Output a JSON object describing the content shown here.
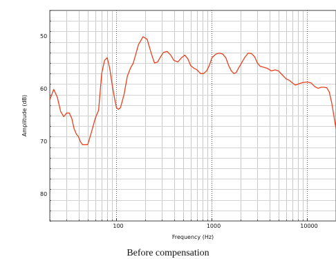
{
  "caption": "Before compensation",
  "chart_data": {
    "type": "line",
    "title": "",
    "xlabel": "Frequency (Hz)",
    "ylabel": "Amplitude (dB)",
    "x_scale": "log",
    "xlim": [
      20,
      20000
    ],
    "ylim": [
      85,
      45
    ],
    "y_inverted": true,
    "x_ticks": [
      100,
      1000,
      10000
    ],
    "x_tick_labels": [
      "100",
      "1000",
      "10000"
    ],
    "y_ticks": [
      50,
      60,
      70,
      80
    ],
    "y_tick_labels": [
      "50",
      "60",
      "70",
      "80"
    ],
    "grid": true,
    "legend": "none",
    "series": [
      {
        "color": "#e8401c",
        "x": [
          20,
          22,
          24,
          26,
          28,
          30,
          32,
          34,
          36,
          38,
          40,
          42,
          44,
          46,
          48,
          50,
          55,
          60,
          65,
          70,
          75,
          80,
          85,
          90,
          95,
          100,
          105,
          110,
          120,
          130,
          140,
          150,
          170,
          190,
          210,
          230,
          250,
          270,
          290,
          310,
          340,
          370,
          400,
          440,
          480,
          520,
          560,
          600,
          650,
          700,
          760,
          820,
          880,
          940,
          1000,
          1100,
          1200,
          1300,
          1400,
          1500,
          1600,
          1700,
          1800,
          1900,
          2000,
          2200,
          2400,
          2600,
          2800,
          3000,
          3200,
          3500,
          3800,
          4200,
          4600,
          5000,
          5500,
          6000,
          6500,
          7000,
          7500,
          8000,
          9000,
          10000,
          11000,
          12000,
          13000,
          14000,
          15000,
          16000,
          17000,
          18000,
          19000,
          20000
        ],
        "y": [
          62.0,
          60.0,
          61.5,
          64.2,
          65.2,
          64.5,
          64.5,
          65.5,
          67.5,
          68.5,
          69.0,
          70.0,
          70.5,
          70.5,
          70.5,
          70.5,
          68.0,
          65.5,
          64.0,
          57.0,
          54.5,
          54.0,
          56.0,
          59.0,
          61.5,
          63.5,
          63.8,
          63.5,
          61.0,
          57.5,
          56.0,
          55.0,
          51.5,
          50.0,
          50.5,
          53.0,
          55.0,
          54.8,
          53.8,
          53.0,
          52.8,
          53.5,
          54.5,
          54.8,
          54.0,
          53.5,
          54.2,
          55.5,
          56.0,
          56.3,
          57.0,
          57.0,
          56.5,
          55.5,
          54.0,
          53.3,
          53.1,
          53.3,
          54.0,
          55.5,
          56.5,
          57.0,
          56.8,
          56.0,
          55.3,
          54.0,
          53.1,
          53.2,
          53.8,
          55.0,
          55.6,
          55.8,
          56.0,
          56.5,
          56.3,
          56.5,
          57.3,
          58.0,
          58.3,
          58.8,
          59.2,
          59.0,
          58.7,
          58.6,
          58.8,
          59.5,
          59.8,
          59.6,
          59.6,
          59.7,
          60.5,
          62.5,
          65.0,
          67.5
        ]
      }
    ]
  }
}
